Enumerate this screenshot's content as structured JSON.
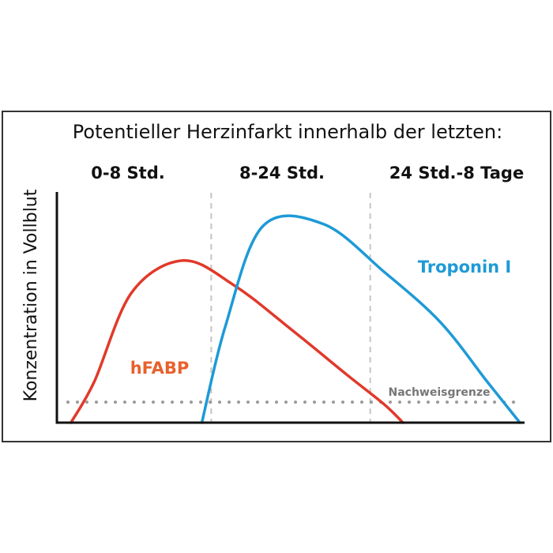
{
  "chart_data": {
    "type": "line",
    "title": "Potentieller Herzinfarkt innerhalb der letzten:",
    "ylabel": "Konzentration in Vollblut",
    "xlabel": "",
    "periods": [
      "0-8 Std.",
      "8-24 Std.",
      "24 Std.-8 Tage"
    ],
    "series": [
      {
        "name": "hFABP",
        "color": "#e03a2a",
        "label_color": "#e8612c",
        "points": [
          [
            0.03,
            0.0
          ],
          [
            0.08,
            0.18
          ],
          [
            0.16,
            0.57
          ],
          [
            0.27,
            0.71
          ],
          [
            0.38,
            0.6
          ],
          [
            0.5,
            0.41
          ],
          [
            0.62,
            0.21
          ],
          [
            0.7,
            0.08
          ],
          [
            0.74,
            0.0
          ]
        ]
      },
      {
        "name": "Troponin I",
        "color": "#1e9ad6",
        "label_color": "#1e9ad6",
        "points": [
          [
            0.31,
            0.0
          ],
          [
            0.36,
            0.42
          ],
          [
            0.44,
            0.86
          ],
          [
            0.57,
            0.87
          ],
          [
            0.7,
            0.66
          ],
          [
            0.82,
            0.44
          ],
          [
            0.92,
            0.18
          ],
          [
            0.99,
            0.0
          ]
        ]
      }
    ],
    "detection_limit": {
      "label": "Nachweisgrenze",
      "y": 0.09,
      "color": "#9a9a9a"
    },
    "dividers": [
      0.33,
      0.67
    ]
  }
}
